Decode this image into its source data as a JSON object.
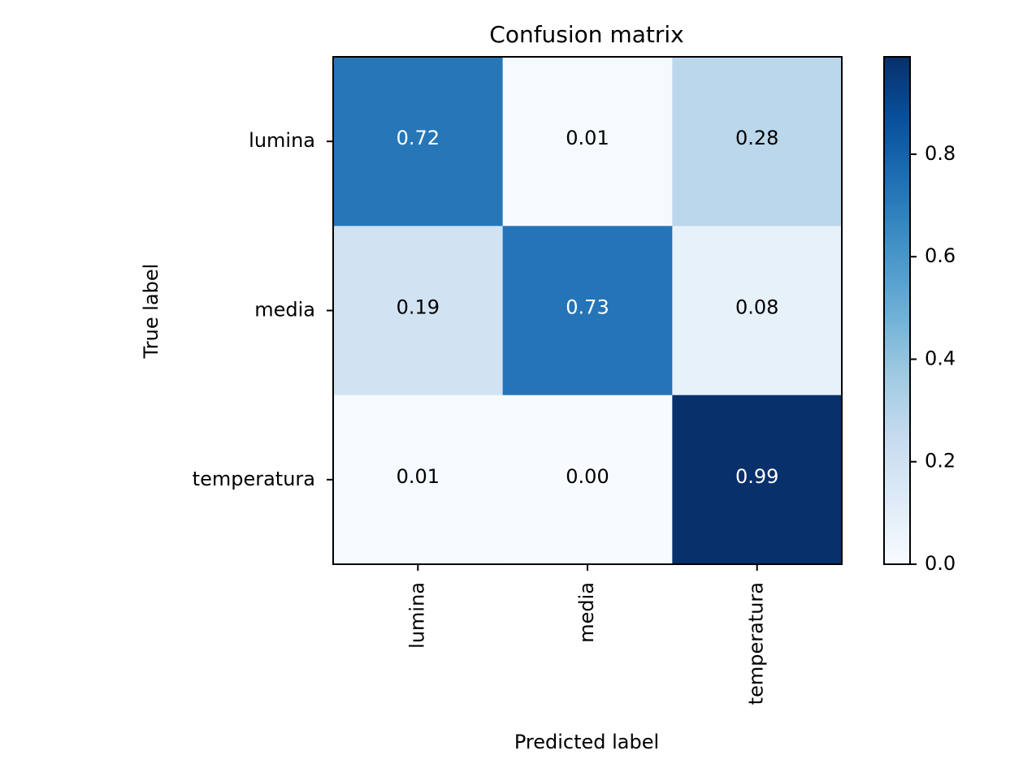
{
  "chart_data": {
    "type": "heatmap",
    "title": "Confusion matrix",
    "xlabel": "Predicted label",
    "ylabel": "True label",
    "x_categories": [
      "lumina",
      "media",
      "temperatura"
    ],
    "y_categories": [
      "lumina",
      "media",
      "temperatura"
    ],
    "values": [
      [
        0.72,
        0.01,
        0.28
      ],
      [
        0.19,
        0.73,
        0.08
      ],
      [
        0.01,
        0.0,
        0.99
      ]
    ],
    "value_labels": [
      [
        "0.72",
        "0.01",
        "0.28"
      ],
      [
        "0.19",
        "0.73",
        "0.08"
      ],
      [
        "0.01",
        "0.00",
        "0.99"
      ]
    ],
    "colormap": "Blues",
    "color_range": [
      0,
      0.99
    ],
    "colorbar": {
      "ticks": [
        0.0,
        0.2,
        0.4,
        0.6,
        0.8
      ],
      "tick_labels": [
        "0.0",
        "0.2",
        "0.4",
        "0.6",
        "0.8"
      ]
    },
    "colors": {
      "low": "#f7fbff",
      "high": "#08306b",
      "text_dark": "#000000",
      "text_light": "#ffffff"
    }
  }
}
